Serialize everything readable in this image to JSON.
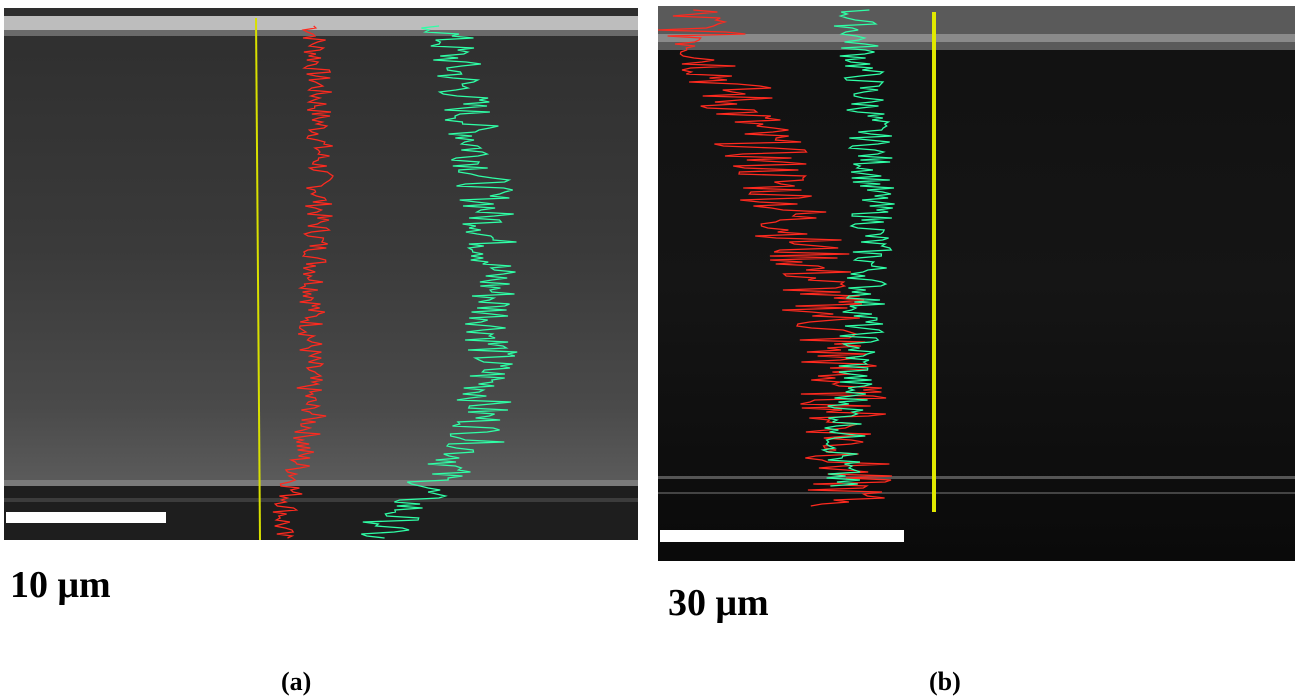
{
  "figure": {
    "panel_a": {
      "scale_label": "10 μm",
      "caption": "(a)"
    },
    "panel_b": {
      "scale_label": "30 μm",
      "caption": "(b)"
    }
  },
  "colors": {
    "red_profile": "#ff2a1f",
    "green_profile": "#2fffa6",
    "scan_line": "#d8e000",
    "scale_bar": "#ffffff"
  }
}
